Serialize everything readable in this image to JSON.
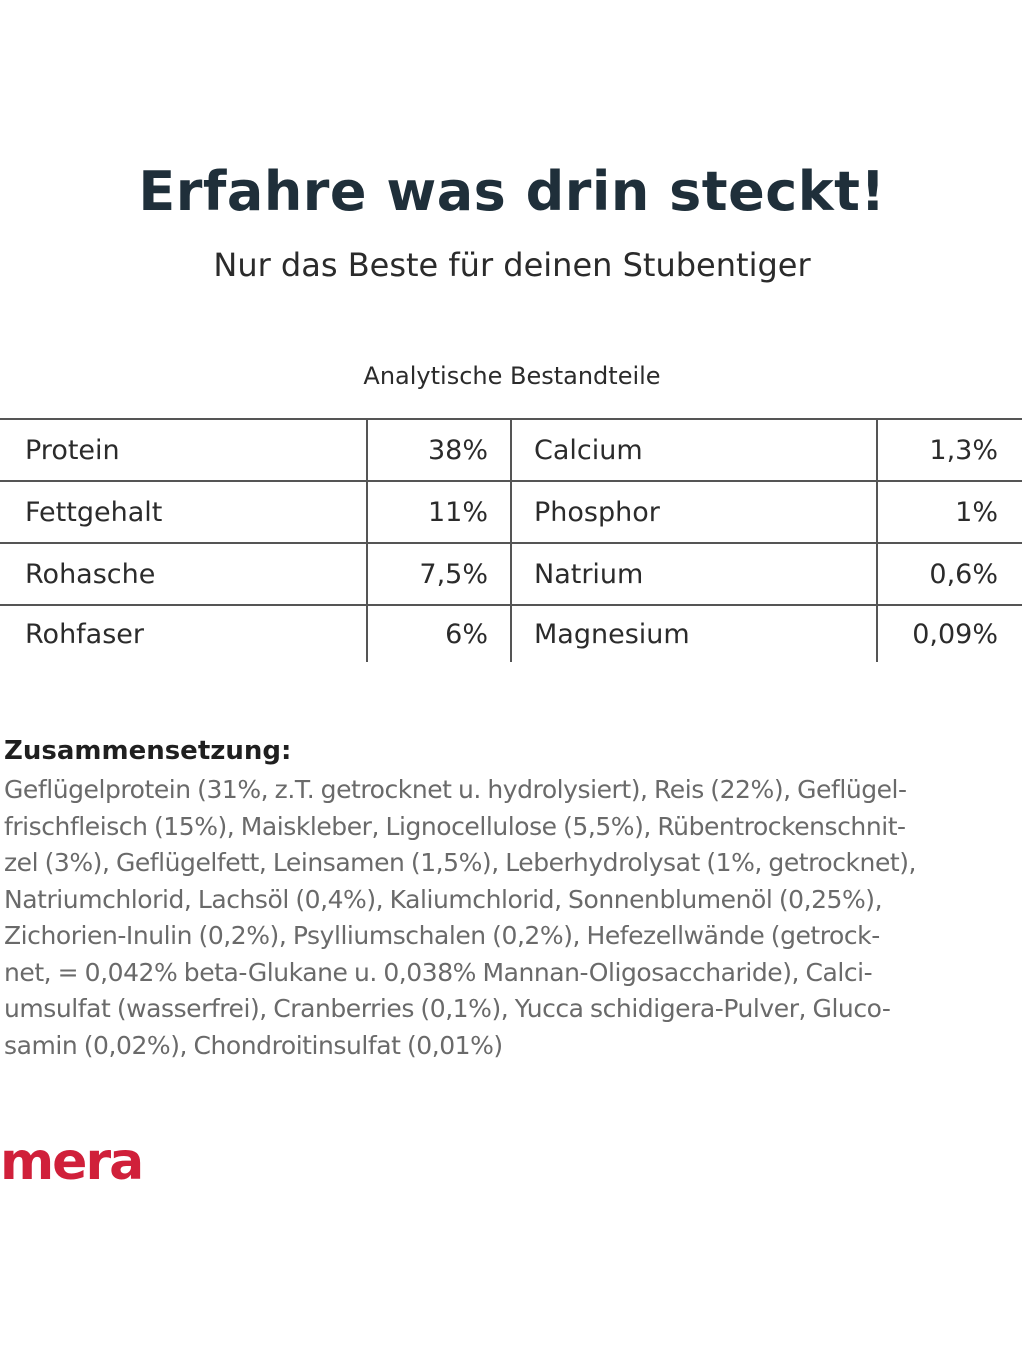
{
  "header": {
    "title": "Erfahre was drin steckt!",
    "subtitle": "Nur das Beste für deinen Stubentiger"
  },
  "analysis": {
    "caption": "Analytische Bestandteile",
    "rows": [
      {
        "left_name": "Protein",
        "left_value": "38%",
        "right_name": "Calcium",
        "right_value": "1,3%"
      },
      {
        "left_name": "Fettgehalt",
        "left_value": "11%",
        "right_name": "Phosphor",
        "right_value": "1%"
      },
      {
        "left_name": "Rohasche",
        "left_value": "7,5%",
        "right_name": "Natrium",
        "right_value": "0,6%"
      },
      {
        "left_name": "Rohfaser",
        "left_value": "6%",
        "right_name": "Magnesium",
        "right_value": "0,09%"
      }
    ]
  },
  "composition": {
    "title": "Zusammensetzung:",
    "lines": [
      "Geflügelprotein (31%, z.T. getrocknet u. hydrolysiert), Reis (22%), Geflügel-",
      "frischfleisch (15%), Maiskleber, Lignocellulose (5,5%), Rübentrockenschnit-",
      "zel (3%), Geflügelfett, Leinsamen (1,5%), Leberhydrolysat (1%, getrocknet),",
      "Natriumchlorid, Lachsöl (0,4%), Kaliumchlorid, Sonnenblumenöl (0,25%),",
      "Zichorien-Inulin (0,2%), Psylliumschalen (0,2%), Hefezellwände (getrock-",
      "net, = 0,042% beta-Glukane u. 0,038% Mannan-Oligosaccharide), Calci-",
      "umsulfat (wasserfrei), Cranberries (0,1%), Yucca schidigera-Pulver, Gluco-",
      "samin (0,02%), Chondroitinsulfat (0,01%)"
    ]
  },
  "brand": {
    "logo_text": "mera",
    "color": "#d0203a"
  }
}
